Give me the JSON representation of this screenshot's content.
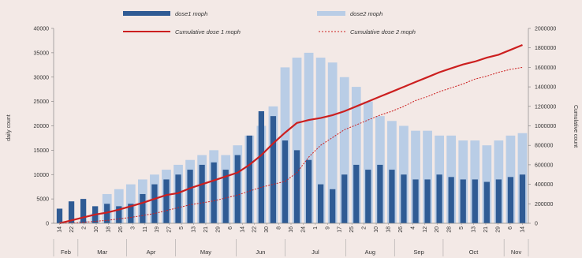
{
  "chart_data": {
    "type": "bar",
    "y_left_label": "daily count",
    "y_right_label": "Cumulative count",
    "ylim_left": [
      0,
      40000
    ],
    "ylim_right": [
      0,
      2000000
    ],
    "left_ticks": [
      "0",
      "5000",
      "10000",
      "15000",
      "20000",
      "25000",
      "30000",
      "35000",
      "40000"
    ],
    "right_ticks": [
      "0",
      "200000",
      "400000",
      "600000",
      "800000",
      "1000000",
      "1200000",
      "1400000",
      "1600000",
      "1800000",
      "2000000"
    ],
    "legend": {
      "dose1": "dose1 moph",
      "dose2": "dose2 moph",
      "cum1": "Cumulative dose 1 moph",
      "cum2": "Cumulative dose 2 moph"
    },
    "colors": {
      "dose1": "#2f5b94",
      "dose2": "#b9cde6",
      "cum1": "#cc1f1f",
      "cum2": "#cc1f1f"
    },
    "day_ticks": [
      "14",
      "22",
      "2",
      "10",
      "18",
      "26",
      "3",
      "11",
      "19",
      "27",
      "5",
      "13",
      "21",
      "29",
      "6",
      "14",
      "22",
      "30",
      "8",
      "16",
      "24",
      "1",
      "9",
      "17",
      "25",
      "2",
      "10",
      "18",
      "26",
      "4",
      "12",
      "20",
      "28",
      "5",
      "13",
      "21",
      "29",
      "6",
      "14"
    ],
    "months": [
      "Feb",
      "Mar",
      "Apr",
      "May",
      "Jun",
      "Jul",
      "Aug",
      "Sep",
      "Oct",
      "Nov"
    ],
    "week_x": [
      "Feb 14",
      "Feb 21",
      "Feb 28",
      "Mar 7",
      "Mar 14",
      "Mar 21",
      "Mar 28",
      "Apr 4",
      "Apr 11",
      "Apr 18",
      "Apr 25",
      "May 2",
      "May 9",
      "May 16",
      "May 23",
      "May 30",
      "Jun 6",
      "Jun 13",
      "Jun 20",
      "Jun 27",
      "Jul 4",
      "Jul 11",
      "Jul 18",
      "Jul 25",
      "Aug 1",
      "Aug 8",
      "Aug 15",
      "Aug 22",
      "Aug 29",
      "Sep 5",
      "Sep 12",
      "Sep 19",
      "Sep 26",
      "Oct 3",
      "Oct 10",
      "Oct 17",
      "Oct 24",
      "Oct 31",
      "Nov 7",
      "Nov 14"
    ],
    "dose1_weekly": [
      3000,
      4500,
      5000,
      3500,
      4000,
      3500,
      4000,
      6000,
      8000,
      9000,
      10000,
      11000,
      12000,
      12500,
      11000,
      14000,
      18000,
      23000,
      22000,
      17000,
      15000,
      13000,
      8000,
      7000,
      10000,
      12000,
      11000,
      12000,
      11000,
      10000,
      9000,
      9000,
      10000,
      9500,
      9000,
      9000,
      8500,
      9000,
      9500,
      10000
    ],
    "dose2_weekly": [
      0,
      0,
      500,
      2000,
      6000,
      7000,
      8000,
      9000,
      10000,
      11000,
      12000,
      13000,
      14000,
      15000,
      14000,
      16000,
      18000,
      20000,
      24000,
      32000,
      34000,
      35000,
      34000,
      33000,
      30000,
      28000,
      25000,
      22000,
      21000,
      20000,
      19000,
      19000,
      18000,
      18000,
      17000,
      17000,
      16000,
      17000,
      18000,
      18500
    ],
    "cum1_weekly": [
      0,
      30000,
      60000,
      90000,
      110000,
      140000,
      175000,
      210000,
      250000,
      290000,
      310000,
      360000,
      400000,
      440000,
      480000,
      520000,
      600000,
      700000,
      820000,
      930000,
      1030000,
      1060000,
      1080000,
      1110000,
      1150000,
      1200000,
      1250000,
      1300000,
      1350000,
      1400000,
      1450000,
      1500000,
      1550000,
      1590000,
      1630000,
      1660000,
      1700000,
      1730000,
      1780000,
      1830000
    ],
    "cum2_weekly": [
      0,
      2000,
      10000,
      20000,
      30000,
      45000,
      60000,
      80000,
      100000,
      130000,
      160000,
      190000,
      210000,
      230000,
      260000,
      290000,
      330000,
      370000,
      400000,
      430000,
      520000,
      680000,
      800000,
      880000,
      960000,
      1010000,
      1060000,
      1110000,
      1150000,
      1200000,
      1260000,
      1300000,
      1350000,
      1390000,
      1430000,
      1480000,
      1510000,
      1550000,
      1580000,
      1600000
    ]
  }
}
